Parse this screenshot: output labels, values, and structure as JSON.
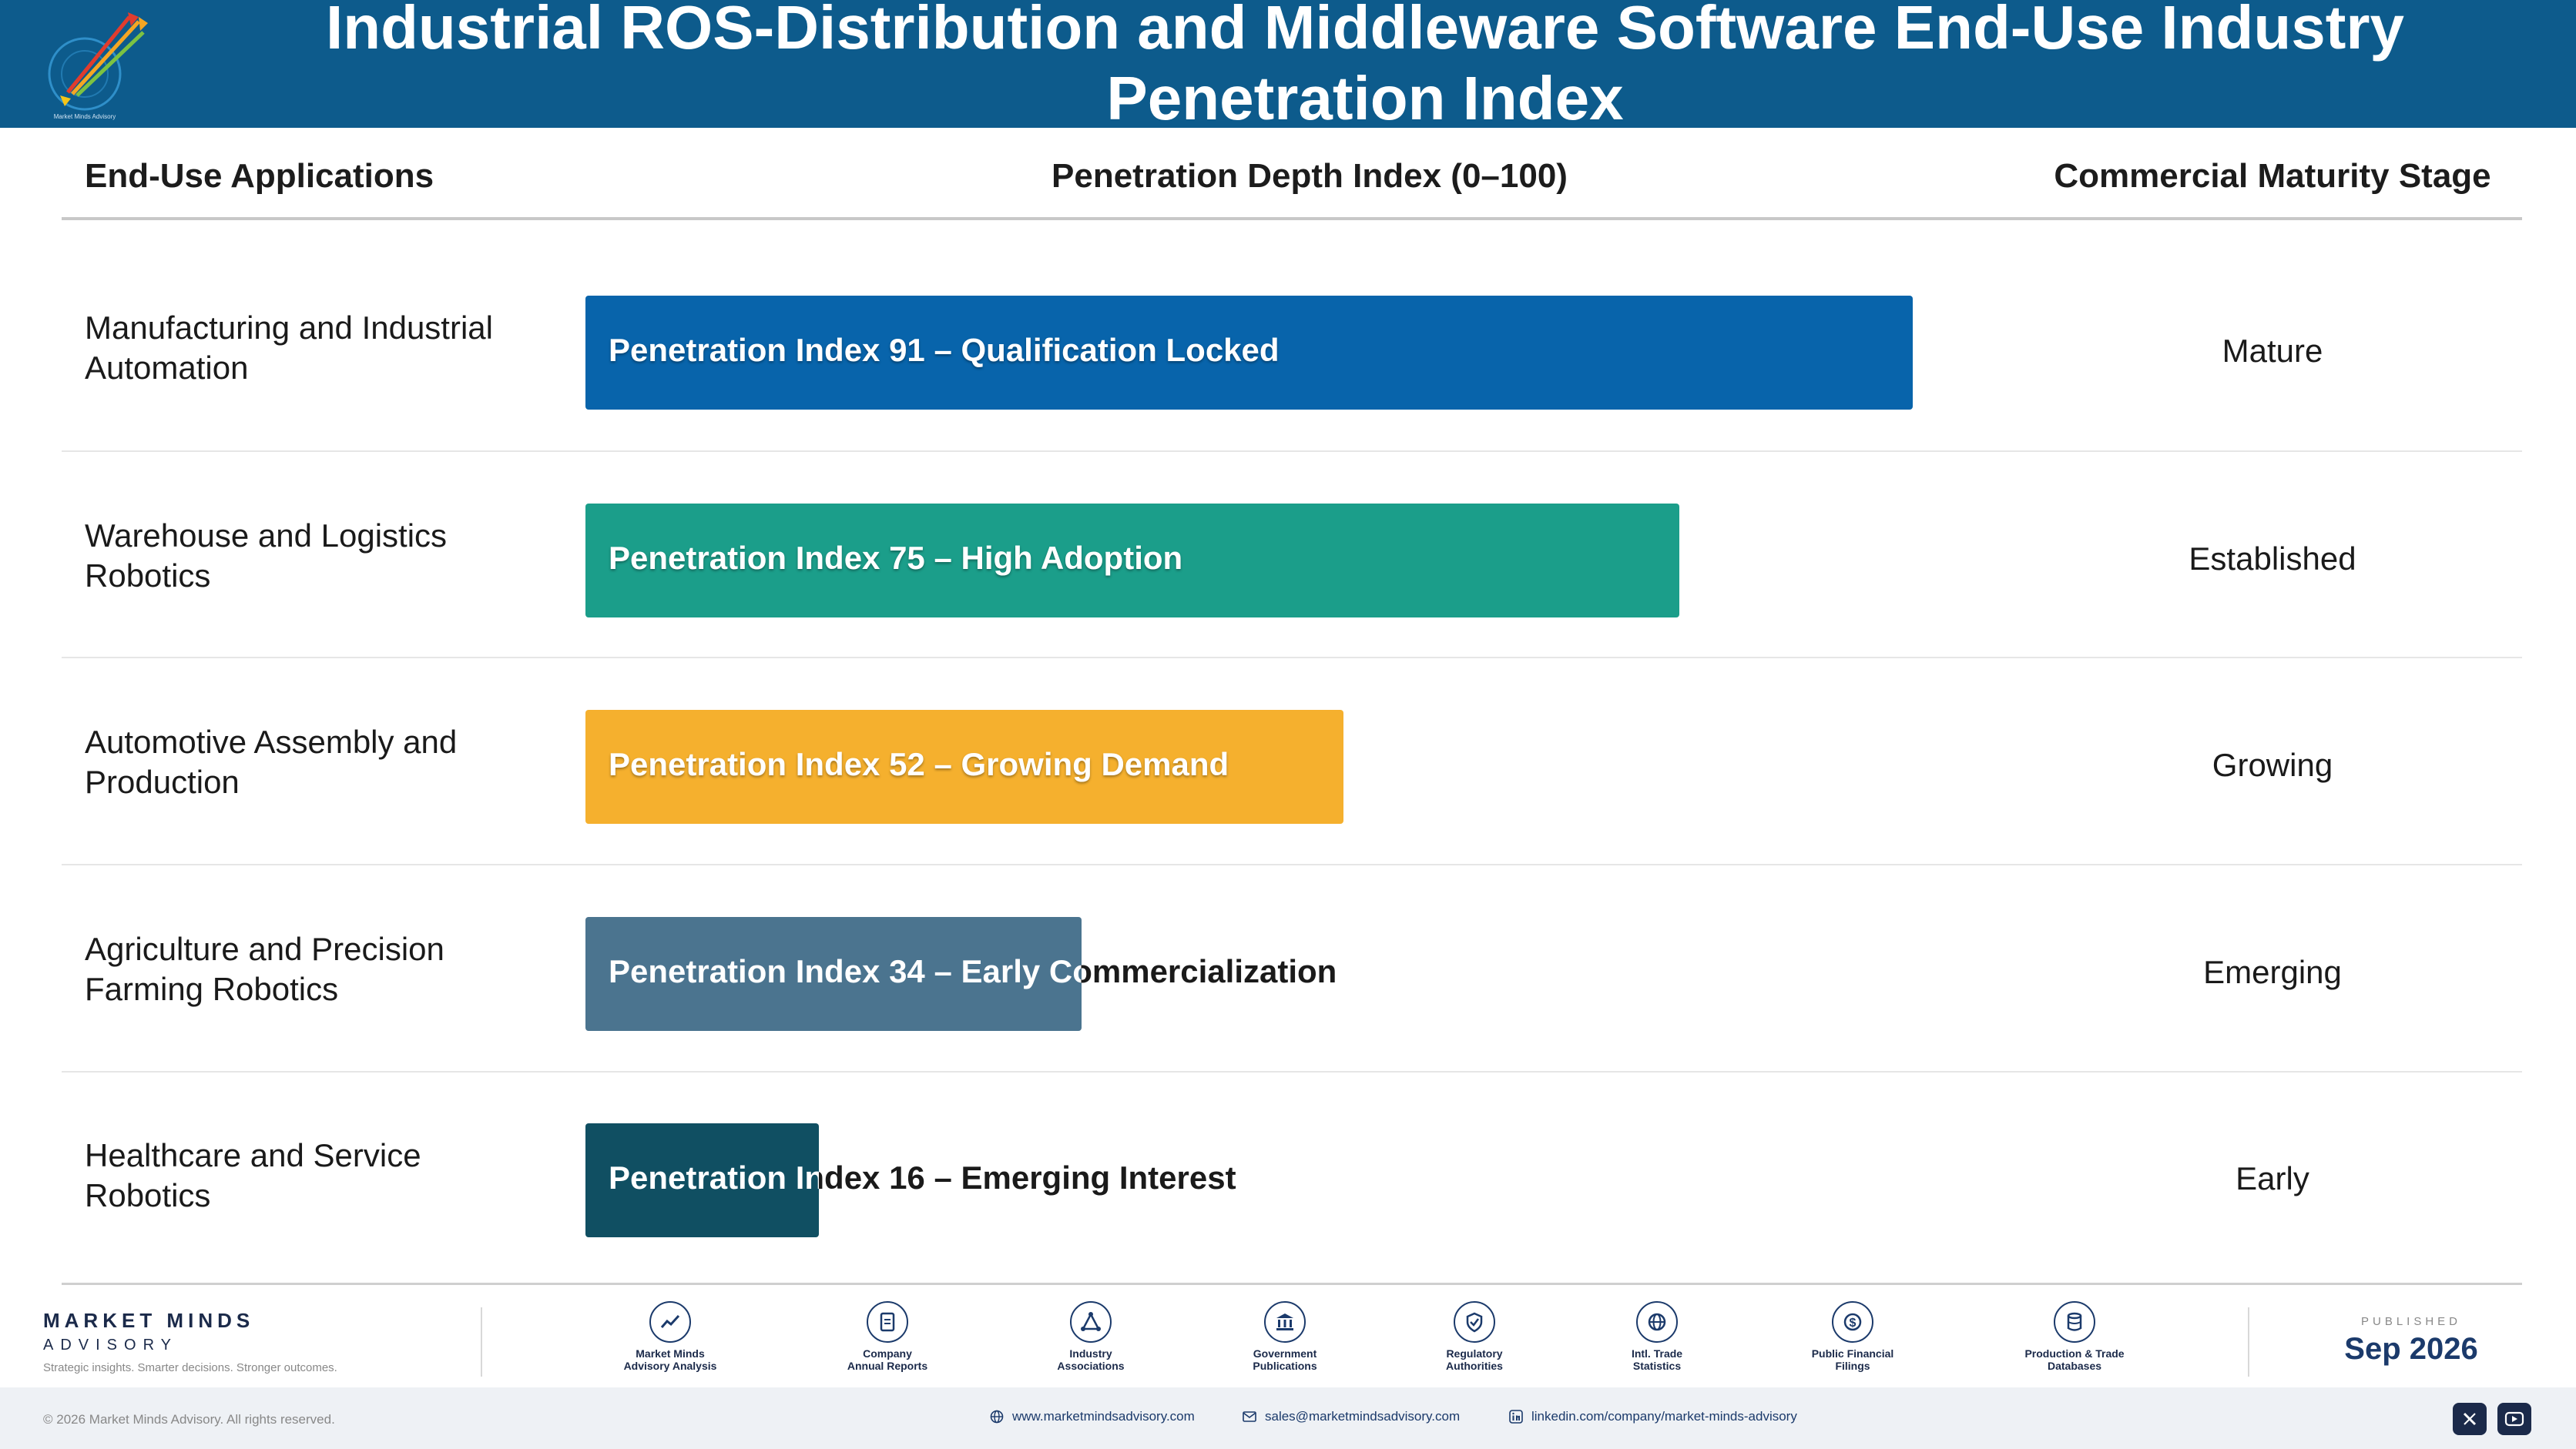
{
  "header": {
    "title": "Industrial ROS-Distribution and Middleware Software End-Use Industry Penetration Index",
    "logo_caption": "Market Minds Advisory"
  },
  "table": {
    "col_application": "End-Use Applications",
    "col_index": "Penetration Depth Index (0–100)",
    "col_stage": "Commercial Maturity Stage"
  },
  "chart_data": {
    "type": "bar",
    "orientation": "horizontal",
    "xlim": [
      0,
      100
    ],
    "categories": [
      "Manufacturing and Industrial Automation",
      "Warehouse and Logistics Robotics",
      "Automotive Assembly and Production",
      "Agriculture and Precision Farming Robotics",
      "Healthcare and Service Robotics"
    ],
    "values": [
      91,
      75,
      52,
      34,
      16
    ],
    "bar_labels": [
      "Penetration Index 91 – Qualification Locked",
      "Penetration Index 75 – High Adoption",
      "Penetration Index 52 – Growing Demand",
      "Penetration Index 34 – Early Commercialization",
      "Penetration Index 16 – Emerging Interest"
    ],
    "maturity_stage": [
      "Mature",
      "Established",
      "Growing",
      "Emerging",
      "Early"
    ],
    "colors": [
      "#0864ab",
      "#1b9e8a",
      "#f5b02e",
      "#4b748f",
      "#104f62"
    ]
  },
  "footer": {
    "brand_name": "MARKET MINDS",
    "brand_sub": "ADVISORY",
    "tagline": "Strategic insights. Smarter decisions. Stronger outcomes.",
    "sources": [
      {
        "line1": "Market Minds",
        "line2": "Advisory Analysis",
        "icon": "trend-chart-icon"
      },
      {
        "line1": "Company",
        "line2": "Annual Reports",
        "icon": "document-icon"
      },
      {
        "line1": "Industry",
        "line2": "Associations",
        "icon": "network-icon"
      },
      {
        "line1": "Government",
        "line2": "Publications",
        "icon": "government-building-icon"
      },
      {
        "line1": "Regulatory",
        "line2": "Authorities",
        "icon": "shield-check-icon"
      },
      {
        "line1": "Intl. Trade",
        "line2": "Statistics",
        "icon": "globe-icon"
      },
      {
        "line1": "Public Financial",
        "line2": "Filings",
        "icon": "dollar-coin-icon"
      },
      {
        "line1": "Production & Trade",
        "line2": "Databases",
        "icon": "database-icon"
      }
    ],
    "published_caption": "PUBLISHED",
    "published_date": "Sep 2026",
    "copyright": "© 2026 Market Minds Advisory. All rights reserved.",
    "website": "www.marketmindsadvisory.com",
    "email": "sales@marketmindsadvisory.com",
    "linkedin": "linkedin.com/company/market-minds-advisory"
  }
}
